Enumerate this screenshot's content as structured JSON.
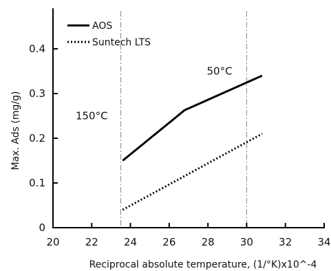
{
  "chart_data": {
    "type": "line",
    "title": "",
    "xlabel": "Reciprocal absolute temperature, (1/°K)x10^-4",
    "ylabel": "Max. Ads (mg/g)",
    "xlim": [
      20,
      34
    ],
    "ylim": [
      0,
      0.4
    ],
    "xticks": [
      "20",
      "22",
      "24",
      "26",
      "28",
      "30",
      "32",
      "34"
    ],
    "xtick_values": [
      20,
      22,
      24,
      26,
      28,
      30,
      32,
      34
    ],
    "yticks": [
      "0",
      "0.1",
      "0.2",
      "0.3",
      "0.4"
    ],
    "ytick_values": [
      0,
      0.1,
      0.2,
      0.3,
      0.4
    ],
    "grid": false,
    "legend_position": "top-left",
    "series": [
      {
        "name": "AOS",
        "style": "solid",
        "color": "#000000",
        "x": [
          23.6,
          26.8,
          30.8
        ],
        "y": [
          0.15,
          0.263,
          0.34
        ]
      },
      {
        "name": "Suntech LTS",
        "style": "dotted",
        "color": "#000000",
        "x": [
          23.6,
          30.8
        ],
        "y": [
          0.04,
          0.21
        ]
      }
    ],
    "vertical_reference_lines": [
      23.5,
      30.0
    ],
    "annotations": [
      {
        "text": "150°C",
        "x": 22.0,
        "y": 0.25
      },
      {
        "text": "50°C",
        "x": 28.6,
        "y": 0.35
      }
    ]
  }
}
